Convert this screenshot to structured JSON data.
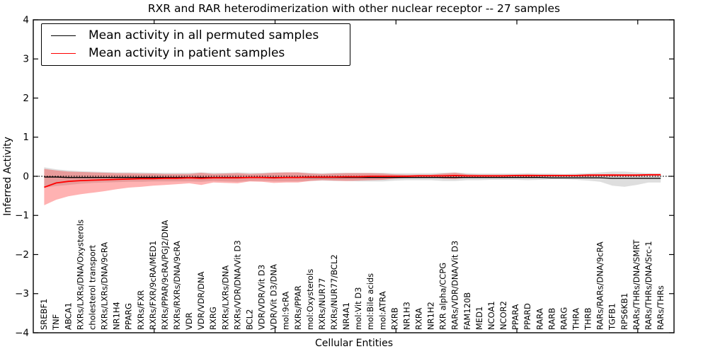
{
  "chart_data": {
    "type": "line",
    "title": "RXR and RAR heterodimerization with other nuclear receptor -- 27 samples",
    "xlabel": "Cellular Entities",
    "ylabel": "Inferred Activity",
    "ylim": [
      -4,
      4
    ],
    "yticks": [
      -4,
      -3,
      -2,
      -1,
      0,
      1,
      2,
      3,
      4
    ],
    "xlim": [
      0,
      53
    ],
    "xticks": [
      10,
      20,
      30,
      40,
      50
    ],
    "grid": false,
    "legend_position": "upper left",
    "background_color": "#ffffff",
    "zero_line": {
      "y": 0,
      "style": "dotted",
      "color": "#000000"
    },
    "categories": [
      "SREBF1",
      "TNF",
      "ABCA1",
      "RXRs/LXRs/DNA/Oxysterols",
      "cholesterol transport",
      "RXRs/LXRs/DNA/9cRA",
      "NR1H4",
      "PPARG",
      "RXRs/FXR",
      "RXRs/FXR/9cRA/MED1",
      "RXRs/PPAR/9cRA/PGJ2/DNA",
      "RXRs/RXRs/DNA/9cRA",
      "VDR",
      "VDR/VDR/DNA",
      "RXRG",
      "RXRs/LXRs/DNA",
      "RXRs/VDR/DNA/Vit D3",
      "BCL2",
      "VDR/VDR/Vit D3",
      "VDR/Vit D3/DNA",
      "mol:9cRA",
      "RXRs/PPAR",
      "mol:Oxysterols",
      "RXRs/NUR77",
      "RXRs/NUR77/BCL2",
      "NR4A1",
      "mol:Vit D3",
      "mol:Bile acids",
      "mol:ATRA",
      "RXRB",
      "NR1H3",
      "RXRA",
      "NR1H2",
      "RXR alpha/CCPG",
      "RARs/VDR/DNA/Vit D3",
      "FAM120B",
      "MED1",
      "NCOA1",
      "NCOR2",
      "PPARA",
      "PPARD",
      "RARA",
      "RARB",
      "RARG",
      "THRA",
      "THRB",
      "RARs/RARs/DNA/9cRA",
      "TGFB1",
      "RPS6KB1",
      "RARs/THRs/DNA/SMRT",
      "RARs/THRs/DNA/Src-1",
      "RARs/THRs"
    ],
    "series": [
      {
        "name": "Mean activity in all permuted samples",
        "color": "#000000",
        "band_color": "#000000",
        "band_opacity": 0.13,
        "line_width": 1.4,
        "values": [
          -0.02,
          -0.02,
          -0.03,
          -0.03,
          -0.03,
          -0.03,
          -0.03,
          -0.03,
          -0.03,
          -0.03,
          -0.03,
          -0.03,
          -0.03,
          -0.03,
          -0.03,
          -0.03,
          -0.03,
          -0.03,
          -0.03,
          -0.03,
          -0.03,
          -0.03,
          -0.03,
          -0.03,
          -0.03,
          -0.03,
          -0.03,
          -0.03,
          -0.03,
          -0.03,
          -0.03,
          -0.03,
          -0.03,
          -0.03,
          -0.03,
          -0.03,
          -0.03,
          -0.03,
          -0.03,
          -0.03,
          -0.03,
          -0.03,
          -0.04,
          -0.04,
          -0.04,
          -0.04,
          -0.04,
          -0.05,
          -0.05,
          -0.05,
          -0.05,
          -0.05
        ],
        "upper": [
          0.23,
          0.18,
          0.15,
          0.13,
          0.12,
          0.11,
          0.1,
          0.1,
          0.1,
          0.09,
          0.09,
          0.09,
          0.09,
          0.1,
          0.09,
          0.09,
          0.1,
          0.09,
          0.09,
          0.1,
          0.1,
          0.1,
          0.09,
          0.08,
          0.09,
          0.09,
          0.09,
          0.09,
          0.09,
          0.08,
          0.08,
          0.08,
          0.08,
          0.09,
          0.1,
          0.08,
          0.07,
          0.07,
          0.07,
          0.07,
          0.08,
          0.07,
          0.07,
          0.06,
          0.07,
          0.08,
          0.1,
          0.12,
          0.12,
          0.1,
          0.08,
          0.07
        ],
        "lower": [
          -0.29,
          -0.25,
          -0.22,
          -0.19,
          -0.17,
          -0.16,
          -0.15,
          -0.14,
          -0.14,
          -0.13,
          -0.13,
          -0.13,
          -0.13,
          -0.14,
          -0.12,
          -0.13,
          -0.14,
          -0.12,
          -0.12,
          -0.13,
          -0.13,
          -0.13,
          -0.12,
          -0.11,
          -0.12,
          -0.12,
          -0.13,
          -0.13,
          -0.13,
          -0.11,
          -0.1,
          -0.1,
          -0.1,
          -0.12,
          -0.12,
          -0.1,
          -0.1,
          -0.09,
          -0.09,
          -0.09,
          -0.1,
          -0.09,
          -0.08,
          -0.08,
          -0.09,
          -0.11,
          -0.14,
          -0.24,
          -0.27,
          -0.22,
          -0.16,
          -0.16
        ]
      },
      {
        "name": "Mean activity in patient samples",
        "color": "#ff0000",
        "band_color": "#ff0000",
        "band_opacity": 0.3,
        "line_width": 1.8,
        "values": [
          -0.28,
          -0.17,
          -0.13,
          -0.11,
          -0.1,
          -0.09,
          -0.08,
          -0.07,
          -0.06,
          -0.06,
          -0.05,
          -0.05,
          -0.04,
          -0.05,
          -0.04,
          -0.04,
          -0.04,
          -0.03,
          -0.03,
          -0.04,
          -0.03,
          -0.03,
          -0.02,
          -0.02,
          -0.02,
          -0.01,
          -0.01,
          0.0,
          0.0,
          0.0,
          0.0,
          0.01,
          0.01,
          0.01,
          0.02,
          0.01,
          0.01,
          0.01,
          0.01,
          0.02,
          0.02,
          0.02,
          0.02,
          0.02,
          0.02,
          0.03,
          0.03,
          0.03,
          0.03,
          0.03,
          0.04,
          0.04
        ],
        "upper": [
          0.19,
          0.15,
          0.12,
          0.11,
          0.1,
          0.09,
          0.08,
          0.08,
          0.07,
          0.07,
          0.06,
          0.06,
          0.06,
          0.09,
          0.06,
          0.07,
          0.08,
          0.06,
          0.07,
          0.09,
          0.1,
          0.1,
          0.07,
          0.06,
          0.07,
          0.08,
          0.08,
          0.08,
          0.07,
          0.05,
          0.04,
          0.04,
          0.04,
          0.07,
          0.09,
          0.05,
          0.04,
          0.04,
          0.04,
          0.04,
          0.05,
          0.04,
          0.04,
          0.04,
          0.04,
          0.05,
          0.05,
          0.06,
          0.05,
          0.05,
          0.05,
          0.06
        ],
        "lower": [
          -0.74,
          -0.6,
          -0.51,
          -0.46,
          -0.42,
          -0.38,
          -0.33,
          -0.29,
          -0.27,
          -0.24,
          -0.22,
          -0.2,
          -0.18,
          -0.22,
          -0.16,
          -0.17,
          -0.18,
          -0.13,
          -0.14,
          -0.17,
          -0.16,
          -0.16,
          -0.12,
          -0.1,
          -0.11,
          -0.12,
          -0.11,
          -0.1,
          -0.09,
          -0.06,
          -0.04,
          -0.03,
          -0.02,
          -0.06,
          -0.07,
          -0.03,
          -0.02,
          -0.02,
          -0.02,
          -0.01,
          -0.02,
          -0.01,
          -0.01,
          -0.01,
          -0.01,
          -0.01,
          0.0,
          0.0,
          0.0,
          0.0,
          0.01,
          0.01
        ]
      }
    ]
  }
}
